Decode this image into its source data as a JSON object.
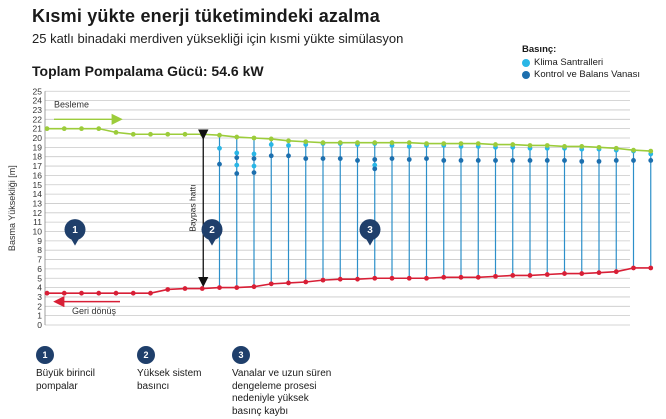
{
  "header": {
    "title": "Kısmi yükte enerji tüketimindeki azalma",
    "subtitle": "25 katlı binadaki merdiven yüksekliği için kısmi yükte simülasyon",
    "total": "Toplam Pompalama Gücü: 54.6 kW"
  },
  "legend": {
    "title": "Basınç:",
    "items": [
      {
        "label": "Klima Santralleri",
        "color": "#29b6e6"
      },
      {
        "label": "Kontrol ve Balans Vanası",
        "color": "#1d6fae"
      }
    ]
  },
  "colors": {
    "supply": "#9ccc3b",
    "return": "#d81f36",
    "riser": "#2c8fc9",
    "ahu": "#29b6e6",
    "valve": "#1d6fae",
    "badge": "#1f3f6b",
    "grid": "#c9c9c9"
  },
  "annotations": {
    "supply_label": "Besleme",
    "return_label": "Geri dönüş",
    "bypass_label": "Baypas hattı",
    "badges": [
      "1",
      "2",
      "3"
    ]
  },
  "footnotes": [
    {
      "num": "1",
      "text": "Büyük birincil\npompalar"
    },
    {
      "num": "2",
      "text": "Yüksek sistem\nbasıncı"
    },
    {
      "num": "3",
      "text": "Vanalar ve uzun süren\ndengeleme prosesi\nnedeniyle yüksek\nbasınç kaybı"
    }
  ],
  "chart_data": {
    "type": "line",
    "ylabel": "Basma Yüksekliği [m]",
    "ylim": [
      0,
      25
    ],
    "yticks": [
      0,
      1,
      2,
      3,
      4,
      5,
      6,
      7,
      8,
      9,
      10,
      11,
      12,
      13,
      14,
      15,
      16,
      17,
      18,
      19,
      20,
      21,
      22,
      23,
      24,
      25
    ],
    "grid": true,
    "legend_position": "top-right",
    "series": [
      {
        "role": "supply",
        "x": [
          0,
          1,
          2,
          3,
          4,
          5,
          6,
          7,
          8,
          9,
          10,
          11,
          12,
          13,
          14,
          15,
          16,
          17,
          18,
          19,
          20,
          21,
          22,
          23,
          24,
          25,
          26,
          27,
          28,
          29,
          30,
          31,
          32,
          33,
          34,
          35
        ],
        "values": [
          21.0,
          21.0,
          21.0,
          21.0,
          20.6,
          20.4,
          20.4,
          20.4,
          20.4,
          20.4,
          20.3,
          20.1,
          20.0,
          19.9,
          19.7,
          19.6,
          19.5,
          19.5,
          19.5,
          19.5,
          19.5,
          19.5,
          19.4,
          19.4,
          19.4,
          19.4,
          19.3,
          19.3,
          19.2,
          19.2,
          19.1,
          19.1,
          19.0,
          18.9,
          18.7,
          18.6
        ]
      },
      {
        "role": "return",
        "x": [
          0,
          1,
          2,
          3,
          4,
          5,
          6,
          7,
          8,
          9,
          10,
          11,
          12,
          13,
          14,
          15,
          16,
          17,
          18,
          19,
          20,
          21,
          22,
          23,
          24,
          25,
          26,
          27,
          28,
          29,
          30,
          31,
          32,
          33,
          34,
          35
        ],
        "values": [
          3.4,
          3.4,
          3.4,
          3.4,
          3.4,
          3.4,
          3.4,
          3.8,
          3.9,
          3.9,
          4.0,
          4.0,
          4.1,
          4.4,
          4.5,
          4.6,
          4.8,
          4.9,
          4.9,
          5.0,
          5.0,
          5.0,
          5.0,
          5.1,
          5.1,
          5.1,
          5.2,
          5.3,
          5.3,
          5.4,
          5.5,
          5.5,
          5.6,
          5.7,
          6.1,
          6.1
        ]
      }
    ],
    "risers": {
      "x": [
        10,
        11,
        12,
        13,
        14,
        15,
        16,
        17,
        18,
        19,
        20,
        21,
        22,
        23,
        24,
        25,
        26,
        27,
        28,
        29,
        30,
        31,
        32,
        33,
        34,
        35
      ],
      "ahu": [
        18.9,
        18.4,
        18.3,
        19.3,
        19.2,
        19.3,
        19.4,
        19.4,
        19.3,
        19.4,
        19.2,
        19.1,
        19.2,
        19.2,
        19.1,
        19.1,
        19.0,
        19.0,
        18.9,
        18.9,
        18.9,
        18.8,
        18.8,
        18.7,
        18.6,
        18.3
      ],
      "valve": [
        17.2,
        17.9,
        17.8,
        18.1,
        18.1,
        17.8,
        17.8,
        17.8,
        17.6,
        17.7,
        17.8,
        17.7,
        17.8,
        17.6,
        17.6,
        17.6,
        17.6,
        17.6,
        17.6,
        17.6,
        17.6,
        17.5,
        17.5,
        17.6,
        17.6,
        17.6
      ],
      "extra": [
        {
          "x": 11,
          "ahu": 17.1,
          "valve": 16.2
        },
        {
          "x": 12,
          "ahu": 17.0,
          "valve": 16.3
        },
        {
          "x": 19,
          "ahu": 17.1,
          "valve": 16.7
        }
      ]
    },
    "bypass": {
      "x": 9,
      "from": 20.4,
      "to": 4.0
    }
  }
}
